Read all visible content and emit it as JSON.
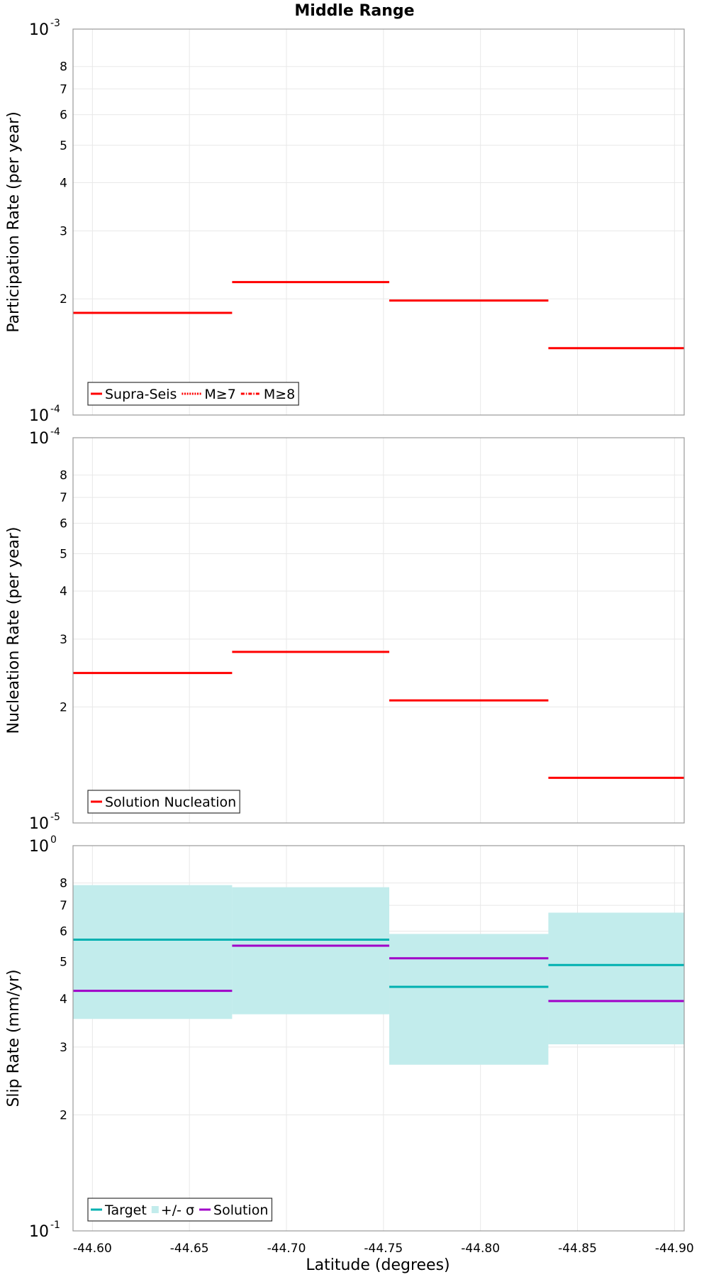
{
  "figure": {
    "title": "Middle Range",
    "xlabel": "Latitude (degrees)",
    "xlim": [
      -44.59,
      -44.905
    ],
    "x_ticks": [
      -44.6,
      -44.65,
      -44.7,
      -44.75,
      -44.8,
      -44.85,
      -44.9
    ],
    "x_tick_labels": [
      "-44.60",
      "-44.65",
      "-44.70",
      "-44.75",
      "-44.80",
      "-44.85",
      "-44.90"
    ],
    "colors": {
      "red": "#ff0000",
      "teal": "#00b0b0",
      "band": "#c2ecec",
      "purple": "#a000c8",
      "grid": "#e8e8e8"
    }
  },
  "chart_data": [
    {
      "type": "line",
      "step": true,
      "ylabel": "Participation Rate (per year)",
      "yscale": "log",
      "ylim": [
        0.0001,
        0.001
      ],
      "decade_labels": [
        {
          "base": "10",
          "exp": "-3",
          "value": 0.001
        },
        {
          "base": "10",
          "exp": "-4",
          "value": 0.0001
        }
      ],
      "minor_ticks": [
        {
          "label": "2",
          "value": 0.0002
        },
        {
          "label": "3",
          "value": 0.0003
        },
        {
          "label": "4",
          "value": 0.0004
        },
        {
          "label": "5",
          "value": 0.0005
        },
        {
          "label": "6",
          "value": 0.0006
        },
        {
          "label": "7",
          "value": 0.0007
        },
        {
          "label": "8",
          "value": 0.0008
        }
      ],
      "legend": [
        "Supra-Seis",
        "M≥7",
        "M≥8"
      ],
      "legend_placement": "bottom-left",
      "segments": [
        {
          "x": [
            -44.59,
            -44.672
          ],
          "y": 0.000184
        },
        {
          "x": [
            -44.672,
            -44.753
          ],
          "y": 0.000221
        },
        {
          "x": [
            -44.753,
            -44.835
          ],
          "y": 0.000198
        },
        {
          "x": [
            -44.835,
            -44.905
          ],
          "y": 0.000149
        }
      ]
    },
    {
      "type": "line",
      "step": true,
      "ylabel": "Nucleation Rate (per year)",
      "yscale": "log",
      "ylim": [
        1e-05,
        0.0001
      ],
      "decade_labels": [
        {
          "base": "10",
          "exp": "-4",
          "value": 0.0001
        },
        {
          "base": "10",
          "exp": "-5",
          "value": 1e-05
        }
      ],
      "minor_ticks": [
        {
          "label": "2",
          "value": 2e-05
        },
        {
          "label": "3",
          "value": 3e-05
        },
        {
          "label": "4",
          "value": 4e-05
        },
        {
          "label": "5",
          "value": 5e-05
        },
        {
          "label": "6",
          "value": 6e-05
        },
        {
          "label": "7",
          "value": 7e-05
        },
        {
          "label": "8",
          "value": 8e-05
        }
      ],
      "legend": [
        "Solution Nucleation"
      ],
      "legend_placement": "bottom-left",
      "segments": [
        {
          "x": [
            -44.59,
            -44.672
          ],
          "y": 2.45e-05
        },
        {
          "x": [
            -44.672,
            -44.753
          ],
          "y": 2.78e-05
        },
        {
          "x": [
            -44.753,
            -44.835
          ],
          "y": 2.08e-05
        },
        {
          "x": [
            -44.835,
            -44.905
          ],
          "y": 1.31e-05
        }
      ]
    },
    {
      "type": "line",
      "step": true,
      "ylabel": "Slip Rate (mm/yr)",
      "yscale": "log",
      "ylim": [
        0.1,
        1
      ],
      "decade_labels": [
        {
          "base": "10",
          "exp": "0",
          "value": 1
        },
        {
          "base": "10",
          "exp": "-1",
          "value": 0.1
        }
      ],
      "minor_ticks": [
        {
          "label": "2",
          "value": 0.2
        },
        {
          "label": "3",
          "value": 0.3
        },
        {
          "label": "4",
          "value": 0.4
        },
        {
          "label": "5",
          "value": 0.5
        },
        {
          "label": "6",
          "value": 0.6
        },
        {
          "label": "7",
          "value": 0.7
        },
        {
          "label": "8",
          "value": 0.8
        }
      ],
      "legend": [
        "Target",
        "+/- σ",
        "Solution"
      ],
      "legend_placement": "bottom-left",
      "target": [
        {
          "x": [
            -44.59,
            -44.672
          ],
          "y": 0.57
        },
        {
          "x": [
            -44.672,
            -44.753
          ],
          "y": 0.57
        },
        {
          "x": [
            -44.753,
            -44.835
          ],
          "y": 0.43
        },
        {
          "x": [
            -44.835,
            -44.905
          ],
          "y": 0.49
        }
      ],
      "band": [
        {
          "x": [
            -44.59,
            -44.672
          ],
          "low": 0.355,
          "high": 0.79
        },
        {
          "x": [
            -44.672,
            -44.753
          ],
          "low": 0.365,
          "high": 0.78
        },
        {
          "x": [
            -44.753,
            -44.835
          ],
          "low": 0.27,
          "high": 0.59
        },
        {
          "x": [
            -44.835,
            -44.905
          ],
          "low": 0.305,
          "high": 0.67
        }
      ],
      "solution": [
        {
          "x": [
            -44.59,
            -44.672
          ],
          "y": 0.42
        },
        {
          "x": [
            -44.672,
            -44.753
          ],
          "y": 0.55
        },
        {
          "x": [
            -44.753,
            -44.835
          ],
          "y": 0.51
        },
        {
          "x": [
            -44.835,
            -44.905
          ],
          "y": 0.395
        }
      ]
    }
  ]
}
